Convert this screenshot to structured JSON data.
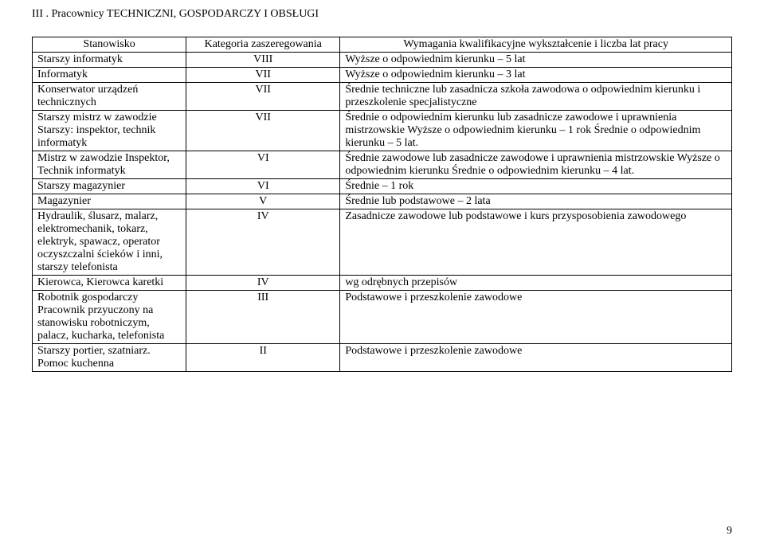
{
  "section_title": "III . Pracownicy TECHNICZNI, GOSPODARCZY I OBSŁUGI",
  "header": {
    "col1": "Stanowisko",
    "col2": "Kategoria zaszeregowania",
    "col3": "Wymagania kwalifikacyjne  wykształcenie i liczba lat pracy"
  },
  "rows": [
    {
      "c1": "Starszy informatyk",
      "c2": "VIII",
      "c3": "Wyższe o odpowiednim kierunku – 5 lat"
    },
    {
      "c1": "Informatyk",
      "c2": "VII",
      "c3": "Wyższe o odpowiednim kierunku – 3 lat"
    },
    {
      "c1": "Konserwator urządzeń technicznych",
      "c2": "VII",
      "c3": "Średnie techniczne lub zasadnicza szkoła zawodowa o odpowiednim kierunku i przeszkolenie specjalistyczne"
    },
    {
      "c1": "Starszy mistrz w zawodzie\nStarszy: inspektor, technik informatyk",
      "c2": "VII",
      "c3": "Średnie o odpowiednim kierunku lub zasadnicze zawodowe i uprawnienia mistrzowskie\nWyższe o odpowiednim kierunku – 1 rok\nŚrednie o odpowiednim kierunku – 5 lat."
    },
    {
      "c1": "Mistrz w zawodzie\nInspektor,\nTechnik informatyk",
      "c2": "VI",
      "c3": "Średnie zawodowe lub zasadnicze zawodowe i uprawnienia mistrzowskie\nWyższe o odpowiednim kierunku\nŚrednie o odpowiednim kierunku – 4 lat."
    },
    {
      "c1": "Starszy magazynier",
      "c2": "VI",
      "c3": "Średnie – 1 rok"
    },
    {
      "c1": "Magazynier",
      "c2": "V",
      "c3": "Średnie  lub podstawowe – 2 lata"
    },
    {
      "c1": "Hydraulik, ślusarz, malarz, elektromechanik, tokarz, elektryk, spawacz, operator oczyszczalni ścieków i inni,\nstarszy telefonista",
      "c2": "IV",
      "c3": "Zasadnicze zawodowe lub podstawowe i kurs przysposobienia zawodowego"
    },
    {
      "c1": "Kierowca,  Kierowca karetki",
      "c2": "IV",
      "c3": "wg odrębnych przepisów"
    },
    {
      "c1": "Robotnik gospodarczy\nPracownik przyuczony na stanowisku robotniczym, palacz, kucharka, telefonista",
      "c2": "III",
      "c3": "Podstawowe i przeszkolenie zawodowe"
    },
    {
      "c1": "Starszy portier, szatniarz.\nPomoc kuchenna",
      "c2": "II",
      "c3": "Podstawowe i przeszkolenie zawodowe"
    }
  ],
  "page_number": "9"
}
